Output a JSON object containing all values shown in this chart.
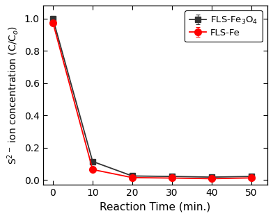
{
  "x": [
    0,
    10,
    20,
    30,
    40,
    50
  ],
  "y_black": [
    1.0,
    0.115,
    0.025,
    0.022,
    0.018,
    0.022
  ],
  "y_red": [
    0.975,
    0.065,
    0.015,
    0.012,
    0.008,
    0.013
  ],
  "yerr_black": [
    0.018,
    0.012,
    0.003,
    0.003,
    0.003,
    0.003
  ],
  "yerr_red": [
    0.018,
    0.008,
    0.003,
    0.003,
    0.003,
    0.003
  ],
  "label_black": "FLS-Fe$_3$O$_4$",
  "label_red": "FLS-Fe",
  "xlabel": "Reaction Time (min.)",
  "ylabel": "S$^{2-}$ ion concentration (C/C$_o$)",
  "xlim": [
    -2.5,
    54
  ],
  "ylim": [
    -0.03,
    1.08
  ],
  "xticks": [
    0,
    10,
    20,
    30,
    40,
    50
  ],
  "yticks": [
    0.0,
    0.2,
    0.4,
    0.6,
    0.8,
    1.0
  ],
  "color_black": "#333333",
  "color_red": "#ff0000",
  "bg_color": "#ffffff",
  "linewidth": 1.3,
  "markersize_square": 6,
  "markersize_circle": 7,
  "tick_fontsize": 10,
  "label_fontsize": 11,
  "legend_fontsize": 9.5
}
